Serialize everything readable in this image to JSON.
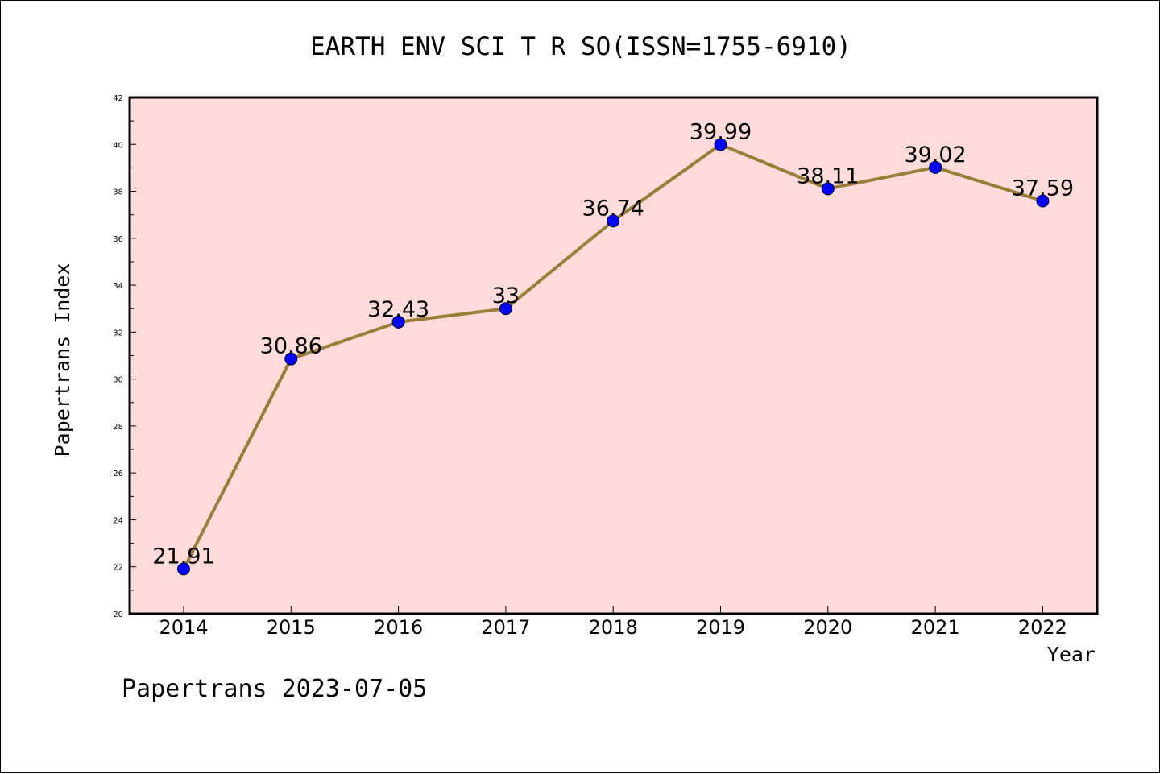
{
  "chart_data": {
    "type": "line",
    "title": "EARTH ENV SCI T R SO(ISSN=1755-6910)",
    "xlabel": "Year",
    "ylabel": "Papertrans Index",
    "categories": [
      "2014",
      "2015",
      "2016",
      "2017",
      "2018",
      "2019",
      "2020",
      "2021",
      "2022"
    ],
    "series": [
      {
        "values": [
          21.91,
          30.86,
          32.43,
          33,
          36.74,
          39.99,
          38.11,
          39.02,
          37.59
        ],
        "labels": [
          "21.91",
          "30.86",
          "32.43",
          "33",
          "36.74",
          "39.99",
          "38.11",
          "39.02",
          "37.59"
        ]
      }
    ],
    "ylim": [
      20,
      42
    ],
    "yticks": [
      "20",
      "22",
      "24",
      "26",
      "28",
      "30",
      "32",
      "34",
      "36",
      "38",
      "40",
      "42"
    ],
    "grid": false,
    "colors": {
      "plot_background": "#ffdcd9",
      "line": "#9a7d3a",
      "marker": "#0000ff"
    }
  },
  "footer": "Papertrans 2023-07-05"
}
